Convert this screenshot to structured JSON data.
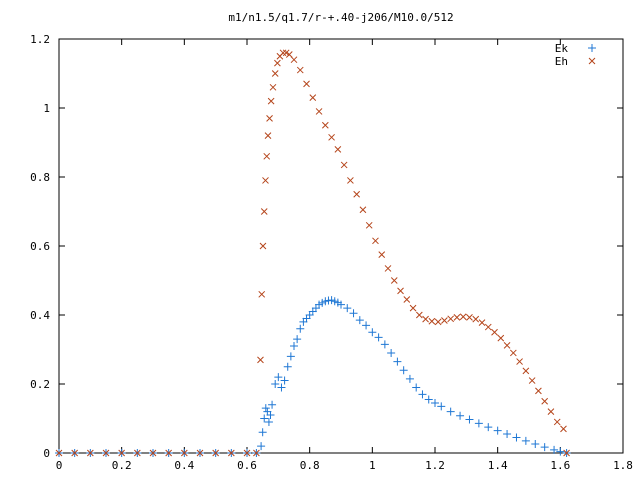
{
  "chart_data": {
    "type": "scatter",
    "title": "m1/n1.5/q1.7/r-+.40-j206/M10.0/512",
    "xlabel": "",
    "ylabel": "",
    "xlim": [
      0,
      1.8
    ],
    "ylim": [
      0,
      1.2
    ],
    "x_ticks": [
      0,
      0.2,
      0.4,
      0.6,
      0.8,
      1,
      1.2,
      1.4,
      1.6,
      1.8
    ],
    "x_tick_labels": [
      "0",
      "0.2",
      "0.4",
      "0.6",
      "0.8",
      "1",
      "1.2",
      "1.4",
      "1.6",
      "1.8"
    ],
    "y_ticks": [
      0,
      0.2,
      0.4,
      0.6,
      0.8,
      1,
      1.2
    ],
    "y_tick_labels": [
      "0",
      "0.2",
      "0.4",
      "0.6",
      "0.8",
      "1",
      "1.2"
    ],
    "grid": false,
    "legend_position": "top-right",
    "series": [
      {
        "name": "Ek",
        "marker": "plus",
        "color": "#1f77d4",
        "points": [
          [
            0.0,
            0.0
          ],
          [
            0.05,
            0.0
          ],
          [
            0.1,
            0.0
          ],
          [
            0.15,
            0.0
          ],
          [
            0.2,
            0.0
          ],
          [
            0.25,
            0.0
          ],
          [
            0.3,
            0.0
          ],
          [
            0.35,
            0.0
          ],
          [
            0.4,
            0.0
          ],
          [
            0.45,
            0.0
          ],
          [
            0.5,
            0.0
          ],
          [
            0.55,
            0.0
          ],
          [
            0.6,
            0.0
          ],
          [
            0.63,
            0.0
          ],
          [
            0.645,
            0.02
          ],
          [
            0.65,
            0.06
          ],
          [
            0.655,
            0.1
          ],
          [
            0.66,
            0.13
          ],
          [
            0.665,
            0.12
          ],
          [
            0.67,
            0.09
          ],
          [
            0.675,
            0.11
          ],
          [
            0.68,
            0.14
          ],
          [
            0.69,
            0.2
          ],
          [
            0.7,
            0.22
          ],
          [
            0.71,
            0.19
          ],
          [
            0.72,
            0.21
          ],
          [
            0.73,
            0.25
          ],
          [
            0.74,
            0.28
          ],
          [
            0.75,
            0.31
          ],
          [
            0.76,
            0.33
          ],
          [
            0.77,
            0.36
          ],
          [
            0.78,
            0.38
          ],
          [
            0.79,
            0.39
          ],
          [
            0.8,
            0.4
          ],
          [
            0.81,
            0.41
          ],
          [
            0.82,
            0.42
          ],
          [
            0.83,
            0.43
          ],
          [
            0.84,
            0.435
          ],
          [
            0.85,
            0.44
          ],
          [
            0.86,
            0.442
          ],
          [
            0.87,
            0.443
          ],
          [
            0.88,
            0.44
          ],
          [
            0.89,
            0.436
          ],
          [
            0.9,
            0.43
          ],
          [
            0.92,
            0.42
          ],
          [
            0.94,
            0.405
          ],
          [
            0.96,
            0.385
          ],
          [
            0.98,
            0.37
          ],
          [
            1.0,
            0.35
          ],
          [
            1.02,
            0.335
          ],
          [
            1.04,
            0.315
          ],
          [
            1.06,
            0.29
          ],
          [
            1.08,
            0.265
          ],
          [
            1.1,
            0.24
          ],
          [
            1.12,
            0.215
          ],
          [
            1.14,
            0.19
          ],
          [
            1.16,
            0.17
          ],
          [
            1.18,
            0.155
          ],
          [
            1.2,
            0.145
          ],
          [
            1.22,
            0.135
          ],
          [
            1.25,
            0.12
          ],
          [
            1.28,
            0.108
          ],
          [
            1.31,
            0.097
          ],
          [
            1.34,
            0.086
          ],
          [
            1.37,
            0.075
          ],
          [
            1.4,
            0.065
          ],
          [
            1.43,
            0.055
          ],
          [
            1.46,
            0.045
          ],
          [
            1.49,
            0.035
          ],
          [
            1.52,
            0.026
          ],
          [
            1.55,
            0.017
          ],
          [
            1.58,
            0.009
          ],
          [
            1.6,
            0.004
          ],
          [
            1.62,
            0.0
          ]
        ]
      },
      {
        "name": "Eh",
        "marker": "cross",
        "color": "#b5451b",
        "points": [
          [
            0.0,
            0.0
          ],
          [
            0.05,
            0.0
          ],
          [
            0.1,
            0.0
          ],
          [
            0.15,
            0.0
          ],
          [
            0.2,
            0.0
          ],
          [
            0.25,
            0.0
          ],
          [
            0.3,
            0.0
          ],
          [
            0.35,
            0.0
          ],
          [
            0.4,
            0.0
          ],
          [
            0.45,
            0.0
          ],
          [
            0.5,
            0.0
          ],
          [
            0.55,
            0.0
          ],
          [
            0.6,
            0.0
          ],
          [
            0.63,
            0.0
          ],
          [
            0.643,
            0.27
          ],
          [
            0.647,
            0.46
          ],
          [
            0.651,
            0.6
          ],
          [
            0.655,
            0.7
          ],
          [
            0.659,
            0.79
          ],
          [
            0.663,
            0.86
          ],
          [
            0.667,
            0.92
          ],
          [
            0.672,
            0.97
          ],
          [
            0.677,
            1.02
          ],
          [
            0.683,
            1.06
          ],
          [
            0.69,
            1.1
          ],
          [
            0.697,
            1.13
          ],
          [
            0.705,
            1.15
          ],
          [
            0.715,
            1.16
          ],
          [
            0.725,
            1.16
          ],
          [
            0.735,
            1.155
          ],
          [
            0.75,
            1.14
          ],
          [
            0.77,
            1.11
          ],
          [
            0.79,
            1.07
          ],
          [
            0.81,
            1.03
          ],
          [
            0.83,
            0.99
          ],
          [
            0.85,
            0.95
          ],
          [
            0.87,
            0.915
          ],
          [
            0.89,
            0.88
          ],
          [
            0.91,
            0.835
          ],
          [
            0.93,
            0.79
          ],
          [
            0.95,
            0.75
          ],
          [
            0.97,
            0.705
          ],
          [
            0.99,
            0.66
          ],
          [
            1.01,
            0.615
          ],
          [
            1.03,
            0.575
          ],
          [
            1.05,
            0.535
          ],
          [
            1.07,
            0.5
          ],
          [
            1.09,
            0.47
          ],
          [
            1.11,
            0.445
          ],
          [
            1.13,
            0.42
          ],
          [
            1.15,
            0.4
          ],
          [
            1.17,
            0.388
          ],
          [
            1.19,
            0.382
          ],
          [
            1.21,
            0.38
          ],
          [
            1.23,
            0.384
          ],
          [
            1.25,
            0.389
          ],
          [
            1.27,
            0.393
          ],
          [
            1.29,
            0.395
          ],
          [
            1.31,
            0.393
          ],
          [
            1.33,
            0.388
          ],
          [
            1.35,
            0.378
          ],
          [
            1.37,
            0.365
          ],
          [
            1.39,
            0.35
          ],
          [
            1.41,
            0.333
          ],
          [
            1.43,
            0.312
          ],
          [
            1.45,
            0.29
          ],
          [
            1.47,
            0.265
          ],
          [
            1.49,
            0.238
          ],
          [
            1.51,
            0.21
          ],
          [
            1.53,
            0.18
          ],
          [
            1.55,
            0.15
          ],
          [
            1.57,
            0.12
          ],
          [
            1.59,
            0.09
          ],
          [
            1.61,
            0.07
          ],
          [
            1.62,
            0.0
          ]
        ]
      }
    ]
  }
}
